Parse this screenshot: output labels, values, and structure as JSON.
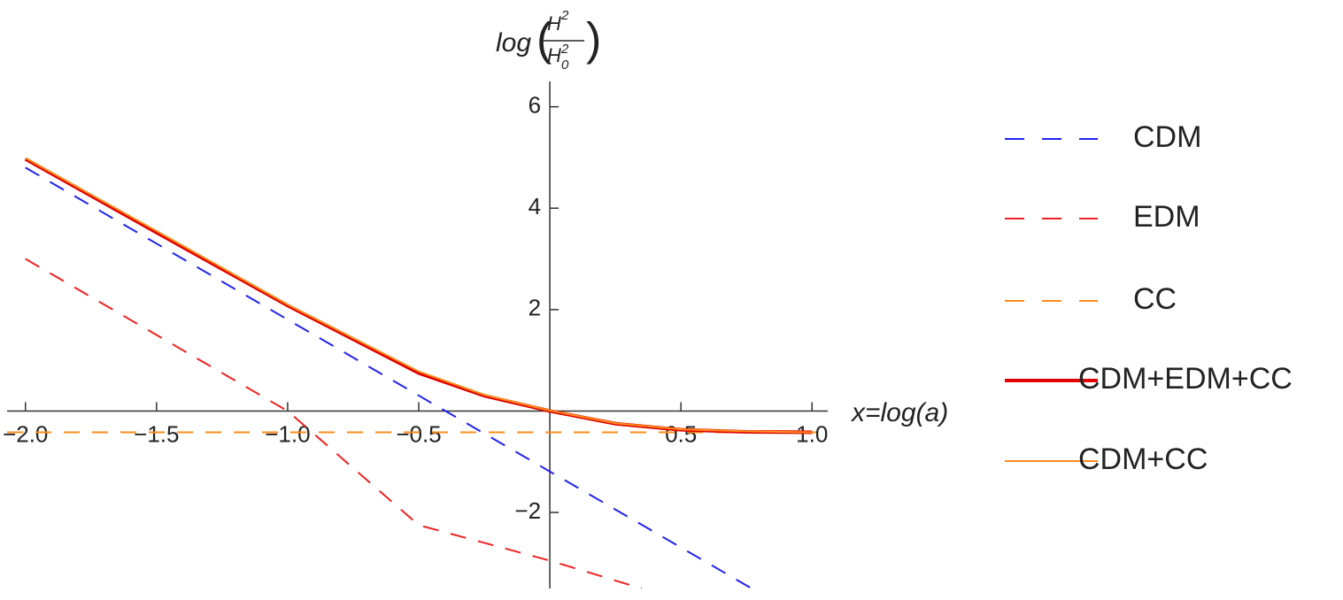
{
  "chart_data": {
    "type": "line",
    "x_label": "x=log(a)",
    "y_label": {
      "func": "log",
      "num": "H",
      "num_sup": "2",
      "den": "H",
      "den_sub": "0",
      "den_sup": "2"
    },
    "xlim": [
      -2.07,
      1.06
    ],
    "ylim": [
      -3.5,
      6.5
    ],
    "xticks": [
      {
        "value": -2,
        "label": "−2.0"
      },
      {
        "value": -1.5,
        "label": "−1.5"
      },
      {
        "value": -1,
        "label": "−1.0"
      },
      {
        "value": -0.5,
        "label": "−0.5"
      },
      0.5,
      {
        "value": 1,
        "label": "1.0"
      }
    ],
    "yticks": [
      {
        "value": -2,
        "label": "−2"
      },
      2,
      4,
      6
    ],
    "series": [
      {
        "name": "CDM",
        "color": "#2222ee",
        "style": "dashed",
        "x": [
          -2,
          0.77
        ],
        "values": [
          4.8,
          -3.5
        ]
      },
      {
        "name": "EDM",
        "color": "#ee2222",
        "style": "dashed",
        "x": [
          -2,
          -1,
          -0.9,
          -0.5,
          0,
          0.35
        ],
        "values": [
          3.0,
          0.0,
          -0.45,
          -2.25,
          -2.95,
          -3.5
        ]
      },
      {
        "name": "CC",
        "color": "#ff8c1a",
        "style": "dashed",
        "x": [
          -2.07,
          1.06
        ],
        "values": [
          -0.42,
          -0.42
        ]
      },
      {
        "name": "CDM+EDM+CC",
        "color": "#e00000",
        "style": "thick",
        "x": [
          -2,
          -1.5,
          -1,
          -0.5,
          -0.25,
          0,
          0.25,
          0.5,
          0.75,
          1
        ],
        "values": [
          4.97,
          3.52,
          2.08,
          0.75,
          0.3,
          0,
          -0.25,
          -0.37,
          -0.41,
          -0.42
        ]
      },
      {
        "name": "CDM+CC",
        "color": "#ff8c1a",
        "style": "solid",
        "x": [
          -2,
          -1.5,
          -1,
          -0.5,
          -0.25,
          0,
          0.25,
          0.5,
          0.75,
          1
        ],
        "values": [
          4.99,
          3.55,
          2.1,
          0.78,
          0.32,
          0.01,
          -0.24,
          -0.36,
          -0.4,
          -0.42
        ]
      }
    ]
  }
}
